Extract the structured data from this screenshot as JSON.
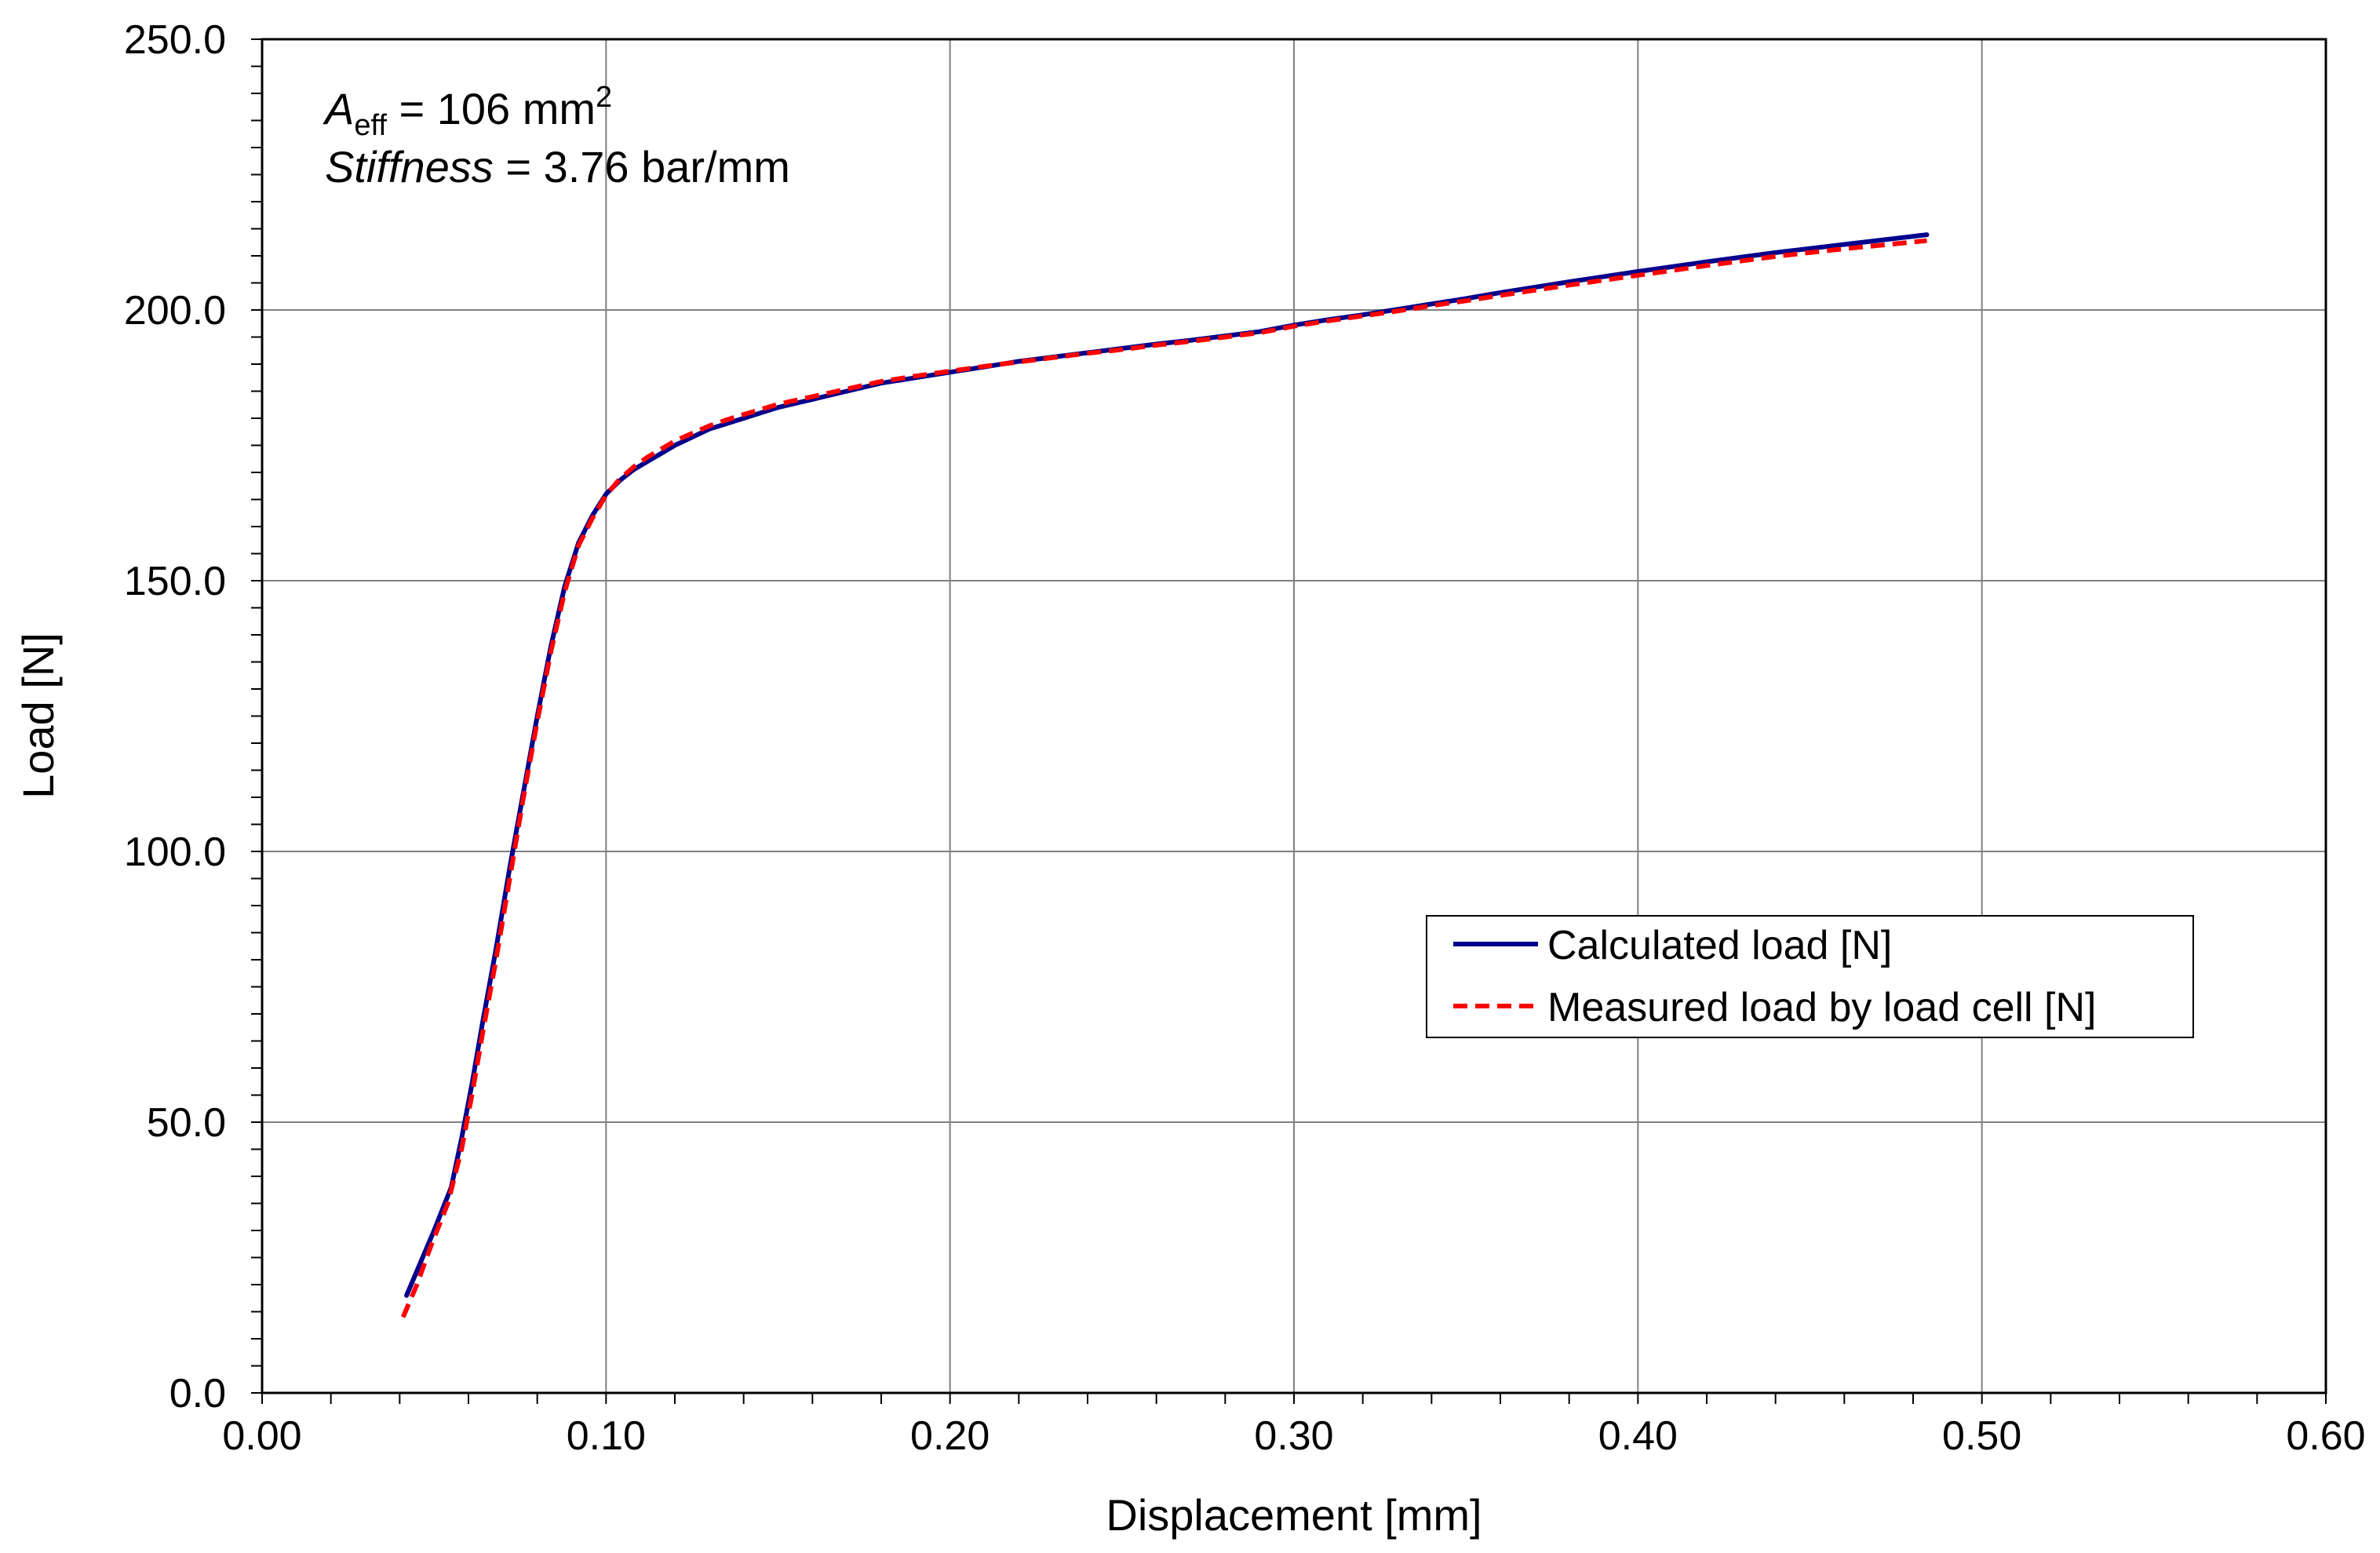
{
  "chart_data": {
    "type": "line",
    "title": "",
    "xlabel": "Displacement [mm]",
    "ylabel": "Load [N]",
    "xlim": [
      0,
      0.6
    ],
    "ylim": [
      0,
      250
    ],
    "xticks": [
      0,
      0.1,
      0.2,
      0.3,
      0.4,
      0.5,
      0.6
    ],
    "xtick_labels": [
      "0.00",
      "0.10",
      "0.20",
      "0.30",
      "0.40",
      "0.50",
      "0.60"
    ],
    "yticks": [
      0,
      50,
      100,
      150,
      200,
      250
    ],
    "ytick_labels": [
      "0.0",
      "50.0",
      "100.0",
      "150.0",
      "200.0",
      "250.0"
    ],
    "grid": true,
    "legend_position": "center-right",
    "annotation": {
      "line1_symbol": "A",
      "line1_subscript": "eff",
      "line1_value": " = 106 mm",
      "line1_superscript": "2",
      "line2_label": "Stiffness",
      "line2_value": " = 3.76 bar/mm"
    },
    "series": [
      {
        "name": "Calculated load [N]",
        "color": "#00008B",
        "dash": false,
        "x": [
          0.042,
          0.046,
          0.05,
          0.055,
          0.058,
          0.061,
          0.064,
          0.068,
          0.072,
          0.076,
          0.08,
          0.084,
          0.088,
          0.092,
          0.096,
          0.1,
          0.104,
          0.108,
          0.112,
          0.116,
          0.12,
          0.125,
          0.13,
          0.135,
          0.14,
          0.15,
          0.16,
          0.17,
          0.18,
          0.19,
          0.2,
          0.21,
          0.22,
          0.23,
          0.24,
          0.25,
          0.26,
          0.27,
          0.28,
          0.29,
          0.3,
          0.31,
          0.32,
          0.33,
          0.34,
          0.35,
          0.36,
          0.38,
          0.4,
          0.42,
          0.44,
          0.46,
          0.484
        ],
        "y": [
          18,
          24,
          30,
          38,
          47,
          57,
          68,
          82,
          97,
          111,
          125,
          138,
          149,
          157,
          162,
          166,
          168.5,
          170.5,
          172,
          173.5,
          175,
          176.5,
          178,
          179,
          180,
          182,
          183.5,
          185,
          186.5,
          187.5,
          188.5,
          189.5,
          190.5,
          191.3,
          192.1,
          192.9,
          193.7,
          194.4,
          195.2,
          196,
          197.2,
          198.2,
          199.1,
          200.1,
          201.1,
          202.1,
          203.2,
          205.2,
          207.1,
          208.9,
          210.6,
          212.1,
          213.9
        ]
      },
      {
        "name": "Measured load by load cell [N]",
        "color": "#FF0000",
        "dash": true,
        "x": [
          0.041,
          0.045,
          0.049,
          0.054,
          0.058,
          0.061,
          0.064,
          0.068,
          0.072,
          0.076,
          0.08,
          0.084,
          0.088,
          0.092,
          0.096,
          0.1,
          0.104,
          0.108,
          0.112,
          0.116,
          0.12,
          0.125,
          0.13,
          0.135,
          0.14,
          0.15,
          0.16,
          0.17,
          0.18,
          0.19,
          0.2,
          0.21,
          0.22,
          0.23,
          0.24,
          0.25,
          0.26,
          0.27,
          0.28,
          0.29,
          0.3,
          0.31,
          0.32,
          0.33,
          0.34,
          0.35,
          0.36,
          0.38,
          0.4,
          0.42,
          0.44,
          0.46,
          0.484
        ],
        "y": [
          14,
          20,
          27,
          35,
          45,
          55,
          66,
          80,
          95,
          110,
          124,
          137,
          148,
          156.5,
          161.5,
          165.8,
          168.8,
          171,
          172.8,
          174.3,
          175.8,
          177.2,
          178.6,
          179.7,
          180.7,
          182.6,
          184,
          185.4,
          186.8,
          187.8,
          188.7,
          189.6,
          190.4,
          191.2,
          192,
          192.7,
          193.5,
          194.2,
          195,
          195.8,
          197,
          198,
          198.9,
          199.8,
          200.8,
          201.7,
          202.7,
          204.6,
          206.4,
          208.2,
          209.9,
          211.3,
          212.8
        ]
      }
    ]
  }
}
